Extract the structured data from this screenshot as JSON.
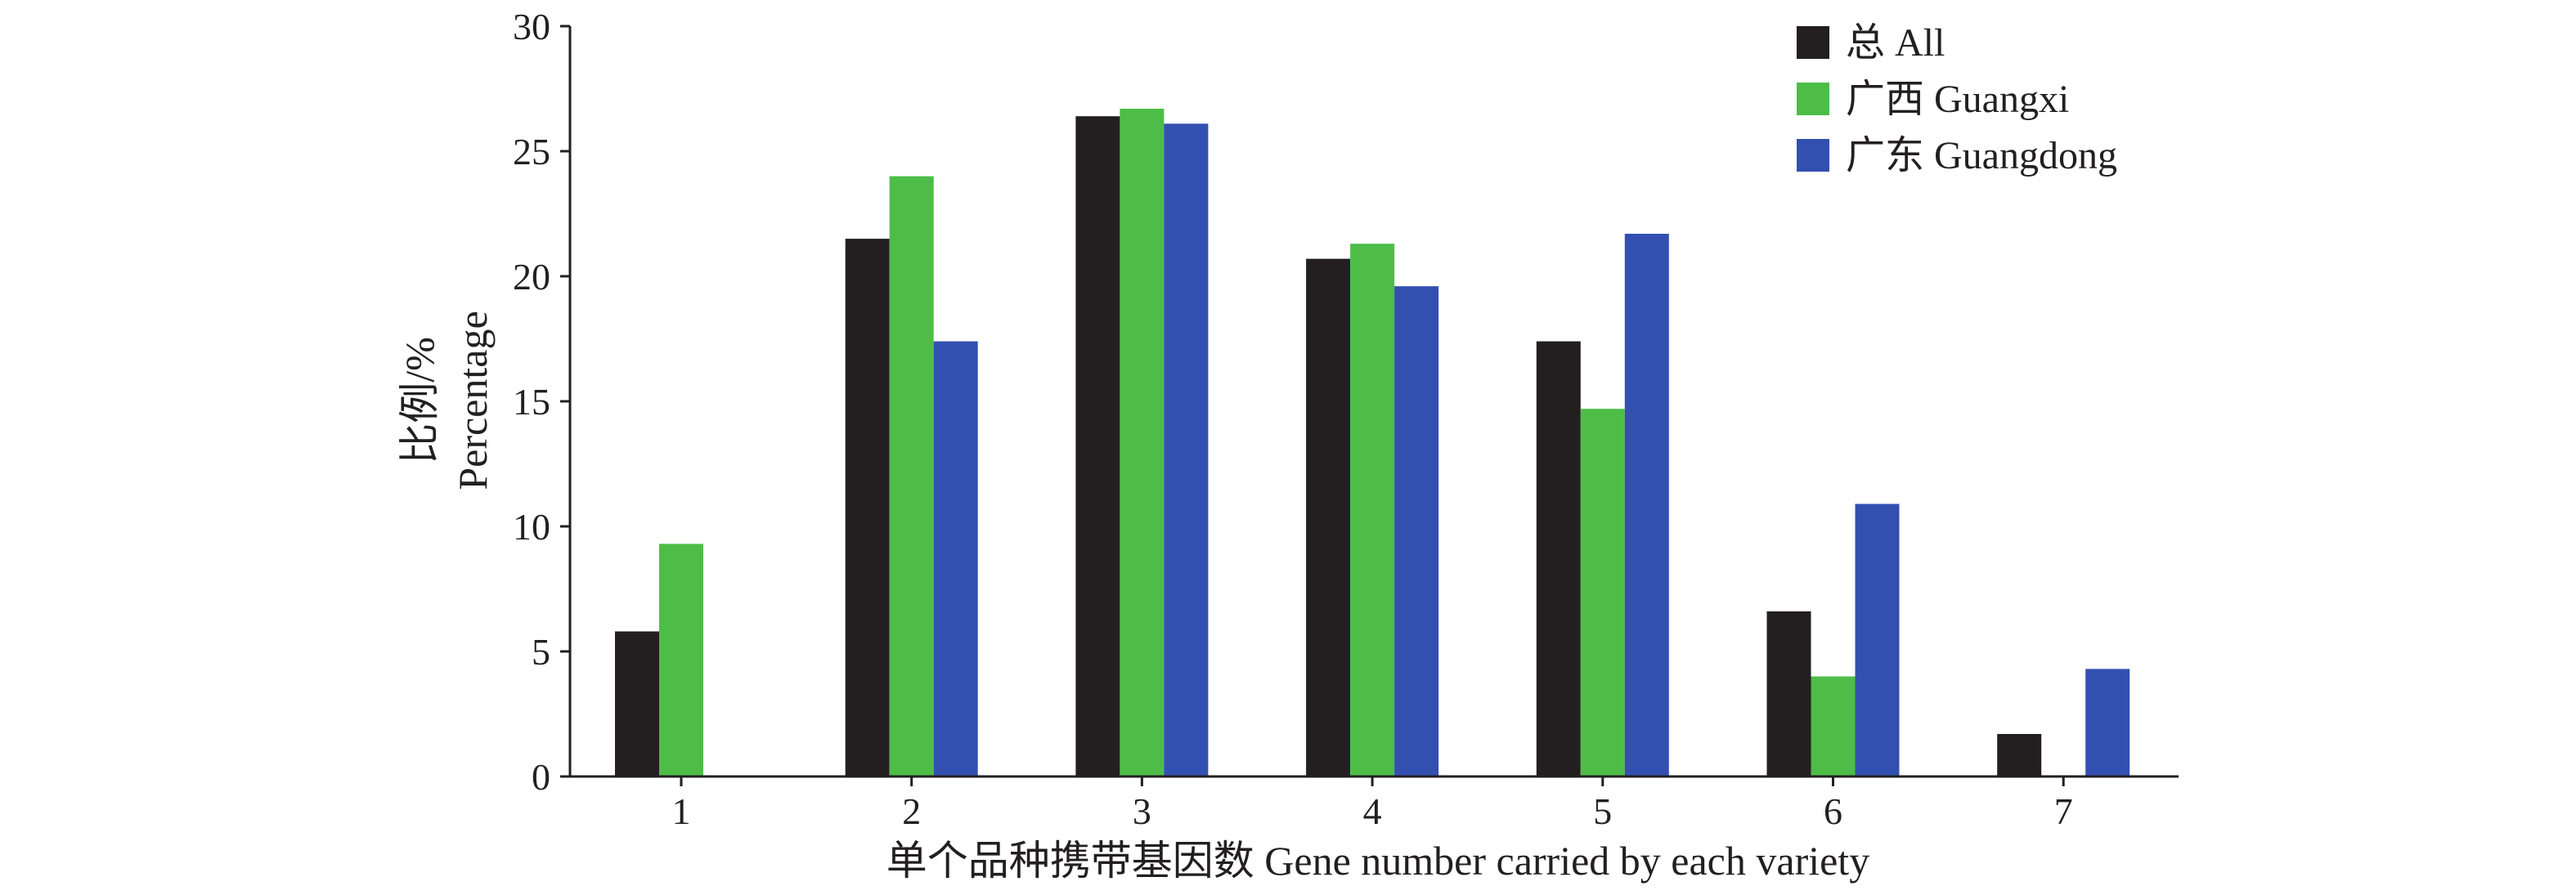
{
  "chart_data": {
    "type": "bar",
    "title": "",
    "xlabel": "单个品种携带基因数 Gene number carried by each variety",
    "ylabel": [
      "比例/%",
      "Percentage"
    ],
    "categories": [
      "1",
      "2",
      "3",
      "4",
      "5",
      "6",
      "7"
    ],
    "ylim": [
      0,
      30
    ],
    "yticks": [
      "0",
      "5",
      "10",
      "15",
      "20",
      "25",
      "30"
    ],
    "grid": false,
    "legend_position": "top-right",
    "series": [
      {
        "name": "总 All",
        "color": "#231f20",
        "values": [
          5.8,
          21.5,
          26.4,
          20.7,
          17.4,
          6.6,
          1.7
        ]
      },
      {
        "name": "广西 Guangxi",
        "color": "#4dbd48",
        "values": [
          9.3,
          24.0,
          26.7,
          21.3,
          14.7,
          4.0,
          0
        ]
      },
      {
        "name": "广东 Guangdong",
        "color": "#3350b0",
        "values": [
          0,
          17.4,
          26.1,
          19.6,
          21.7,
          10.9,
          4.3
        ]
      }
    ]
  }
}
